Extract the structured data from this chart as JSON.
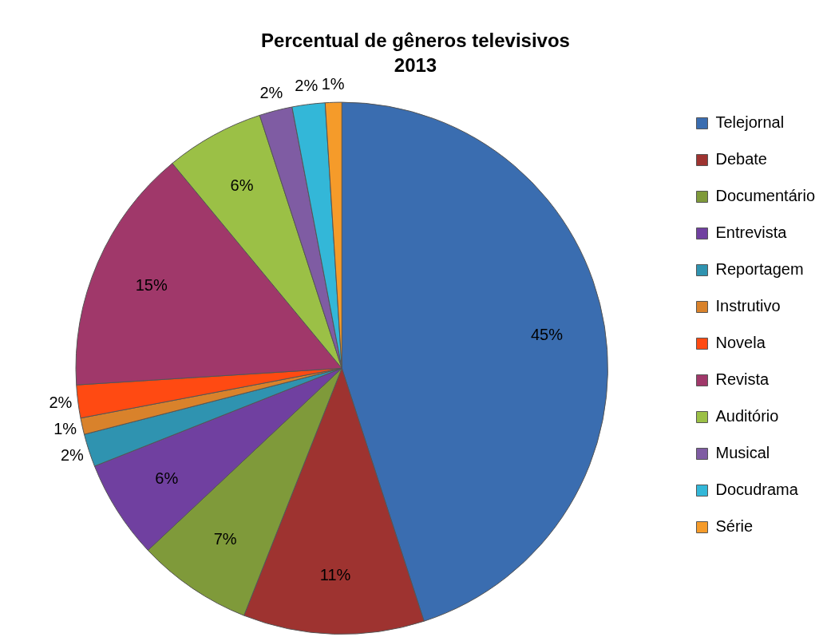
{
  "chart_data": {
    "type": "pie",
    "title": "Percentual de gêneros televisivos",
    "subtitle": "2013",
    "categories": [
      "Telejornal",
      "Debate",
      "Documentário",
      "Entrevista",
      "Reportagem",
      "Instrutivo",
      "Novela",
      "Revista",
      "Auditório",
      "Musical",
      "Docudrama",
      "Série"
    ],
    "values": [
      45,
      11,
      7,
      6,
      2,
      1,
      2,
      15,
      6,
      2,
      2,
      1
    ],
    "value_labels": [
      "45%",
      "11%",
      "7%",
      "6%",
      "2%",
      "1%",
      "2%",
      "15%",
      "6%",
      "2%",
      "2%",
      "1%"
    ],
    "colors": [
      "#3a6db0",
      "#9e3330",
      "#7f9a3a",
      "#7040a0",
      "#2f93b0",
      "#d9822b",
      "#ff4a12",
      "#a0386a",
      "#9bc046",
      "#7f5ca3",
      "#33b7d8",
      "#f59b2a"
    ],
    "legend": "right"
  }
}
